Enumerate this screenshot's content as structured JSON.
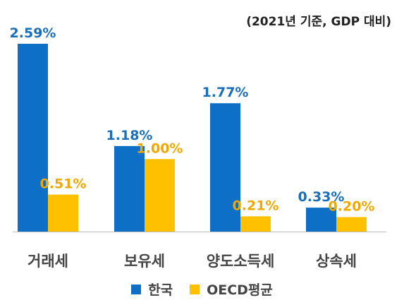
{
  "note": "(2021년 기준, GDP 대비)",
  "chart_data": {
    "type": "bar",
    "categories": [
      "거래세",
      "보유세",
      "양도소득세",
      "상속세"
    ],
    "series": [
      {
        "name": "한국",
        "values": [
          2.59,
          1.18,
          1.77,
          0.33
        ],
        "labels": [
          "2.59%",
          "1.18%",
          "1.77%",
          "0.33%"
        ],
        "color": "#0e6fc7",
        "label_color": "#1a6fba"
      },
      {
        "name": "OECD평균",
        "values": [
          0.51,
          1.0,
          0.21,
          0.2
        ],
        "labels": [
          "0.51%",
          "1.00%",
          "0.21%",
          "0.20%"
        ],
        "color": "#ffc000",
        "label_color": "#f0a800"
      }
    ],
    "title": "",
    "xlabel": "",
    "ylabel": "",
    "ylim": [
      0,
      2.59
    ],
    "grid": false,
    "legend": "bottom"
  }
}
